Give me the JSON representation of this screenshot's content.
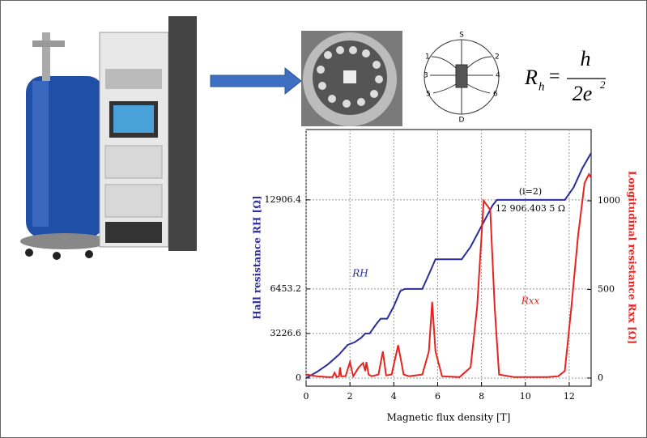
{
  "chart_data": {
    "type": "line",
    "xlabel": "Magnetic flux density [T]",
    "ylabel": "Hall resistance RH [Ω]",
    "y2label": "Longitudinal resistance Rxx [Ω]",
    "xlim": [
      0,
      13
    ],
    "xticks": [
      0,
      2,
      4,
      6,
      8,
      10,
      12
    ],
    "ylim": [
      -590,
      18000
    ],
    "yticks": [
      0,
      3226.6,
      6453.2,
      12906.4
    ],
    "y2lim": [
      -46,
      1402
    ],
    "y2ticks": [
      0,
      500,
      1000
    ],
    "grid": true,
    "annotations": [
      "(i=2)",
      "12 906.403 5 Ω"
    ],
    "series": [
      {
        "name": "RH",
        "color": "#2b2d9e",
        "x": [
          0,
          0.5,
          1,
          1.5,
          1.9,
          2.2,
          2.5,
          2.7,
          2.9,
          3.2,
          3.4,
          3.7,
          4.0,
          4.3,
          4.5,
          5.3,
          5.6,
          5.9,
          7.1,
          7.5,
          8.0,
          8.5,
          8.7,
          11.8,
          12.2,
          12.6,
          13
        ],
        "values": [
          0,
          450,
          1000,
          1700,
          2400,
          2581,
          2900,
          3226,
          3226,
          3900,
          4302,
          4302,
          5200,
          6300,
          6453,
          6453,
          7500,
          8604,
          8604,
          9500,
          11000,
          12500,
          12906,
          12906,
          13800,
          15200,
          16300
        ]
      },
      {
        "name": "Rxx",
        "color": "#e8231f",
        "axis": "y2",
        "x": [
          0,
          0.5,
          1,
          1.2,
          1.3,
          1.4,
          1.5,
          1.55,
          1.6,
          1.8,
          2.0,
          2.15,
          2.4,
          2.6,
          2.7,
          2.75,
          2.85,
          3.0,
          3.3,
          3.5,
          3.65,
          3.9,
          4.2,
          4.45,
          4.7,
          5.3,
          5.6,
          5.75,
          5.9,
          6.2,
          7.0,
          7.5,
          7.8,
          8.1,
          8.4,
          8.6,
          8.8,
          9.5,
          11.0,
          11.5,
          11.8,
          12.1,
          12.4,
          12.7,
          12.9,
          13
        ],
        "values": [
          20,
          10,
          5,
          5,
          30,
          5,
          10,
          60,
          10,
          10,
          90,
          10,
          60,
          85,
          40,
          90,
          20,
          10,
          20,
          150,
          15,
          20,
          185,
          20,
          10,
          20,
          150,
          430,
          150,
          10,
          5,
          60,
          400,
          1000,
          950,
          400,
          20,
          5,
          5,
          10,
          40,
          400,
          800,
          1100,
          1150,
          1130
        ]
      }
    ]
  },
  "formula": {
    "lhs": "R",
    "lhs_sub": "h",
    "eq": "=",
    "num": "h",
    "den": "2e",
    "den_sup": "2"
  },
  "diagram": {
    "top": "S",
    "bottom": "D",
    "pins": [
      "1",
      "2",
      "3",
      "4",
      "5",
      "6"
    ]
  }
}
